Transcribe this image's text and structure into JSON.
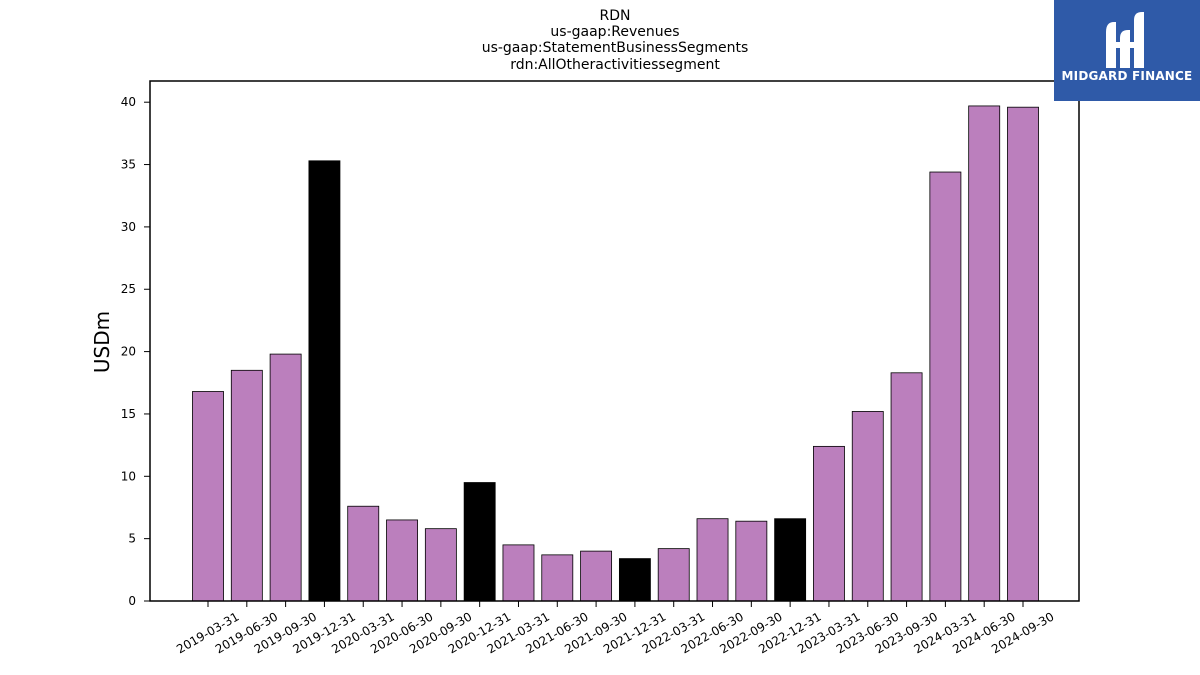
{
  "brand": {
    "name": "MIDGARD FINANCE",
    "color": "#2f5aa8"
  },
  "chart_data": {
    "type": "bar",
    "title": [
      "RDN",
      "us-gaap:Revenues",
      "us-gaap:StatementBusinessSegments",
      "rdn:AllOtheractivitiessegment"
    ],
    "xlabel": "",
    "ylabel": "USDm",
    "ylim": [
      0,
      41.7
    ],
    "yticks": [
      0,
      5,
      10,
      15,
      20,
      25,
      30,
      35,
      40
    ],
    "grid": false,
    "legend": "none",
    "colors": {
      "quarter": "#bb7fbd",
      "year_end": "#000000",
      "edge": "#000000"
    },
    "categories": [
      "2019-03-31",
      "2019-06-30",
      "2019-09-30",
      "2019-12-31",
      "2020-03-31",
      "2020-06-30",
      "2020-09-30",
      "2020-12-31",
      "2021-03-31",
      "2021-06-30",
      "2021-09-30",
      "2021-12-31",
      "2022-03-31",
      "2022-06-30",
      "2022-09-30",
      "2022-12-31",
      "2023-03-31",
      "2023-06-30",
      "2023-09-30",
      "2024-03-31",
      "2024-06-30",
      "2024-09-30"
    ],
    "values": [
      16.8,
      18.5,
      19.8,
      35.3,
      7.6,
      6.5,
      5.8,
      9.5,
      4.5,
      3.7,
      4.0,
      3.4,
      4.2,
      6.6,
      6.4,
      6.6,
      12.4,
      15.2,
      18.3,
      34.4,
      39.7,
      39.6
    ],
    "highlight": [
      false,
      false,
      false,
      true,
      false,
      false,
      false,
      true,
      false,
      false,
      false,
      true,
      false,
      false,
      false,
      true,
      false,
      false,
      false,
      false,
      false,
      false
    ]
  }
}
